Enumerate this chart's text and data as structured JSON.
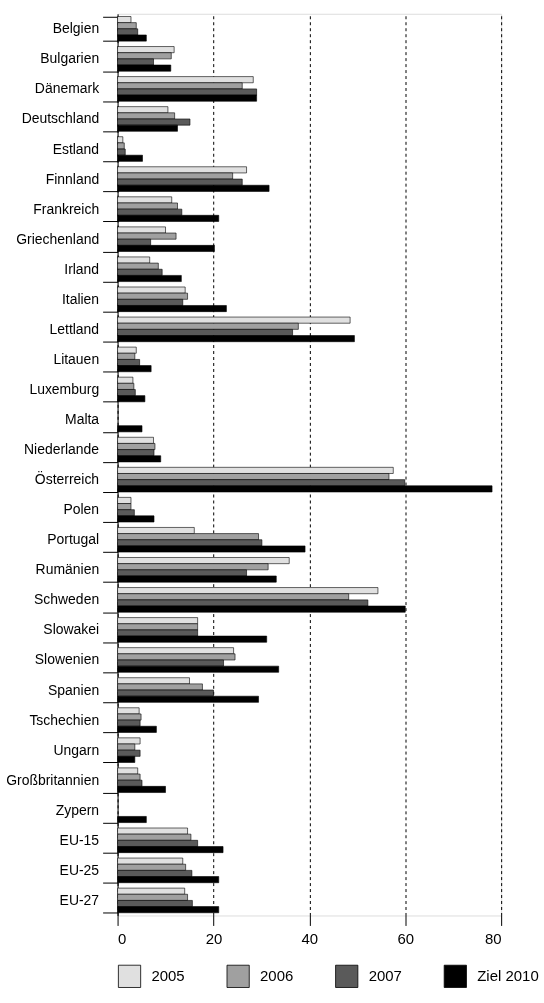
{
  "chart_data": {
    "type": "bar",
    "orientation": "horizontal",
    "categories": [
      "Belgien",
      "Bulgarien",
      "Dänemark",
      "Deutschland",
      "Estland",
      "Finnland",
      "Frankreich",
      "Griechenland",
      "Irland",
      "Italien",
      "Lettland",
      "Litauen",
      "Luxemburg",
      "Malta",
      "Niederlande",
      "Österreich",
      "Polen",
      "Portugal",
      "Rumänien",
      "Schweden",
      "Slowakei",
      "Slowenien",
      "Spanien",
      "Tschechien",
      "Ungarn",
      "Großbritannien",
      "Zypern",
      "EU-15",
      "EU-25",
      "EU-27"
    ],
    "series": [
      {
        "name": "2005",
        "color": "#e0e0e0",
        "values": [
          2.8,
          11.8,
          28.3,
          10.5,
          1.1,
          26.9,
          11.3,
          10.0,
          6.7,
          14.1,
          48.5,
          3.9,
          3.2,
          null,
          7.5,
          57.5,
          2.8,
          16.0,
          35.8,
          54.3,
          16.7,
          24.2,
          15.0,
          4.5,
          4.7,
          4.2,
          null,
          14.6,
          13.6,
          14.0
        ]
      },
      {
        "name": "2006",
        "color": "#a0a0a0",
        "values": [
          3.9,
          11.2,
          26.0,
          11.9,
          1.4,
          24.0,
          12.5,
          12.2,
          8.5,
          14.6,
          37.7,
          3.6,
          3.4,
          null,
          7.8,
          56.6,
          2.8,
          29.4,
          31.4,
          48.2,
          16.7,
          24.5,
          17.7,
          4.9,
          3.6,
          4.7,
          null,
          15.3,
          14.2,
          14.6
        ]
      },
      {
        "name": "2007",
        "color": "#5a5a5a",
        "values": [
          4.2,
          7.5,
          29.0,
          15.1,
          1.6,
          26.0,
          13.4,
          6.9,
          9.3,
          13.6,
          36.5,
          4.6,
          3.7,
          null,
          7.6,
          59.9,
          3.5,
          30.1,
          26.9,
          52.2,
          16.7,
          22.1,
          20.0,
          4.7,
          4.7,
          5.1,
          null,
          16.7,
          15.5,
          15.6
        ]
      },
      {
        "name": "Ziel 2010",
        "color": "#000000",
        "values": [
          6.0,
          11.1,
          29.0,
          12.5,
          5.2,
          31.6,
          21.1,
          20.2,
          13.3,
          22.7,
          49.4,
          7.0,
          5.7,
          5.1,
          9.0,
          78.1,
          7.6,
          39.1,
          33.1,
          60.0,
          31.1,
          33.6,
          29.4,
          8.1,
          3.6,
          10.0,
          6.0,
          22.0,
          21.1,
          21.1
        ]
      }
    ],
    "xlim": [
      0,
      80
    ],
    "xticks": [
      0,
      20,
      40,
      60,
      80
    ],
    "grid": "x",
    "legend": "bottom"
  }
}
